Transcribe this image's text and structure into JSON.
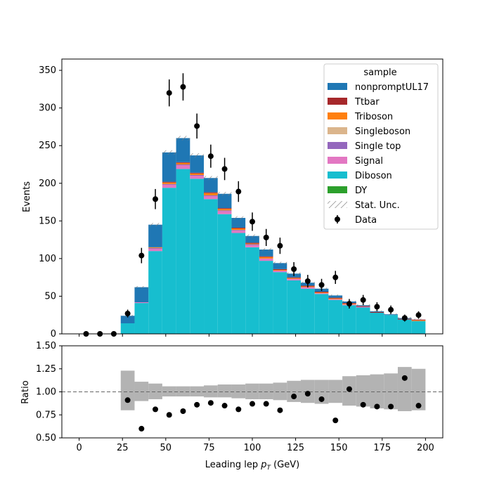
{
  "chart_data": [
    {
      "type": "bar",
      "subtype": "stacked-histogram",
      "xlabel": "Leading lep p_T (GeV)",
      "ylabel": "Events",
      "xlim": [
        -10,
        210
      ],
      "ylim": [
        0,
        365
      ],
      "x_ticks": [
        0,
        25,
        50,
        75,
        100,
        125,
        150,
        175,
        200
      ],
      "y_ticks": [
        0,
        50,
        100,
        150,
        200,
        250,
        300,
        350
      ],
      "bin_edges": [
        24,
        32,
        40,
        48,
        56,
        64,
        72,
        80,
        88,
        96,
        104,
        112,
        120,
        128,
        136,
        144,
        152,
        160,
        168,
        176,
        184,
        192,
        200
      ],
      "legend": {
        "title": "sample",
        "position": "top-right",
        "entries": [
          "nonpromptUL17",
          "Ttbar",
          "Triboson",
          "Singleboson",
          "Single top",
          "Signal",
          "Diboson",
          "DY",
          "Stat. Unc.",
          "Data"
        ]
      },
      "series": [
        {
          "name": "Diboson",
          "color": "#17becf",
          "values": [
            14,
            41,
            110,
            194,
            219,
            206,
            179,
            159,
            134,
            115,
            97,
            82,
            71,
            60,
            53,
            45,
            38,
            35,
            28,
            25,
            19,
            17
          ]
        },
        {
          "name": "Signal",
          "color": "#e377c2",
          "values": [
            0,
            1,
            3,
            4,
            5,
            4,
            4,
            4,
            3,
            3,
            3,
            2,
            2,
            2,
            1,
            1,
            1,
            1,
            0,
            0,
            0,
            0
          ]
        },
        {
          "name": "Single top",
          "color": "#9467bd",
          "values": [
            0,
            0,
            1,
            1,
            1,
            1,
            1,
            1,
            1,
            1,
            0,
            0,
            0,
            0,
            0,
            0,
            0,
            0,
            0,
            0,
            0,
            0
          ]
        },
        {
          "name": "Singleboson",
          "color": "#dbb58c",
          "values": [
            0,
            0,
            0,
            0,
            0,
            0,
            0,
            0,
            0,
            0,
            0,
            0,
            0,
            0,
            0,
            0,
            0,
            0,
            0,
            0,
            0,
            0
          ]
        },
        {
          "name": "Triboson",
          "color": "#ff7f0e",
          "values": [
            0,
            0,
            1,
            2,
            2,
            2,
            3,
            2,
            2,
            1,
            2,
            1,
            1,
            1,
            1,
            1,
            1,
            0,
            0,
            0,
            0,
            1
          ]
        },
        {
          "name": "Ttbar",
          "color": "#a6282b",
          "values": [
            0,
            0,
            0,
            1,
            1,
            1,
            1,
            1,
            1,
            1,
            1,
            1,
            1,
            1,
            1,
            1,
            1,
            1,
            1,
            0,
            1,
            1
          ]
        },
        {
          "name": "DY",
          "color": "#2ca02c",
          "values": [
            0,
            0,
            0,
            0,
            0,
            0,
            0,
            0,
            0,
            0,
            0,
            0,
            0,
            0,
            0,
            0,
            0,
            0,
            0,
            0,
            0,
            0
          ]
        },
        {
          "name": "nonpromptUL17",
          "color": "#1f77b4",
          "values": [
            10,
            20,
            30,
            39,
            32,
            23,
            19,
            19,
            13,
            9,
            9,
            8,
            5,
            4,
            4,
            3,
            2,
            1,
            1,
            1,
            1,
            0
          ]
        }
      ],
      "data_points": {
        "name": "Data",
        "color": "#000000",
        "x": [
          4,
          12,
          20,
          28,
          36,
          44,
          52,
          60,
          68,
          76,
          84,
          92,
          100,
          108,
          116,
          124,
          132,
          140,
          148,
          156,
          164,
          172,
          180,
          188,
          196
        ],
        "y": [
          0,
          0,
          0,
          27,
          104,
          179,
          320,
          328,
          276,
          236,
          219,
          189,
          149,
          128,
          117,
          86,
          70,
          65,
          75,
          40,
          45,
          36,
          32,
          21,
          25
        ]
      }
    },
    {
      "type": "scatter",
      "subtype": "ratio",
      "xlabel": "Leading lep p_T (GeV)",
      "ylabel": "Ratio",
      "xlim": [
        -10,
        210
      ],
      "ylim": [
        0.5,
        1.5
      ],
      "x_ticks": [
        0,
        25,
        50,
        75,
        100,
        125,
        150,
        175,
        200
      ],
      "y_ticks": [
        0.5,
        0.75,
        1.0,
        1.25,
        1.5
      ],
      "reference_line": 1.0,
      "uncertainty_band": {
        "color": "#b3b3b3",
        "low": [
          0.8,
          0.9,
          0.92,
          0.95,
          0.95,
          0.95,
          0.94,
          0.94,
          0.93,
          0.92,
          0.92,
          0.91,
          0.89,
          0.88,
          0.87,
          0.88,
          0.85,
          0.84,
          0.82,
          0.81,
          0.79,
          0.8
        ],
        "high": [
          1.23,
          1.11,
          1.09,
          1.06,
          1.06,
          1.06,
          1.07,
          1.08,
          1.08,
          1.09,
          1.09,
          1.1,
          1.12,
          1.13,
          1.13,
          1.13,
          1.17,
          1.18,
          1.19,
          1.2,
          1.27,
          1.25
        ]
      },
      "points": {
        "x": [
          28,
          36,
          44,
          52,
          60,
          68,
          76,
          84,
          92,
          100,
          108,
          116,
          124,
          132,
          140,
          148,
          156,
          164,
          172,
          180,
          188,
          196
        ],
        "y": [
          0.91,
          0.6,
          0.81,
          0.75,
          0.79,
          0.86,
          0.88,
          0.85,
          0.81,
          0.87,
          0.87,
          0.8,
          0.95,
          0.98,
          0.92,
          0.69,
          1.03,
          0.86,
          0.84,
          0.84,
          1.15,
          0.85
        ]
      }
    }
  ]
}
